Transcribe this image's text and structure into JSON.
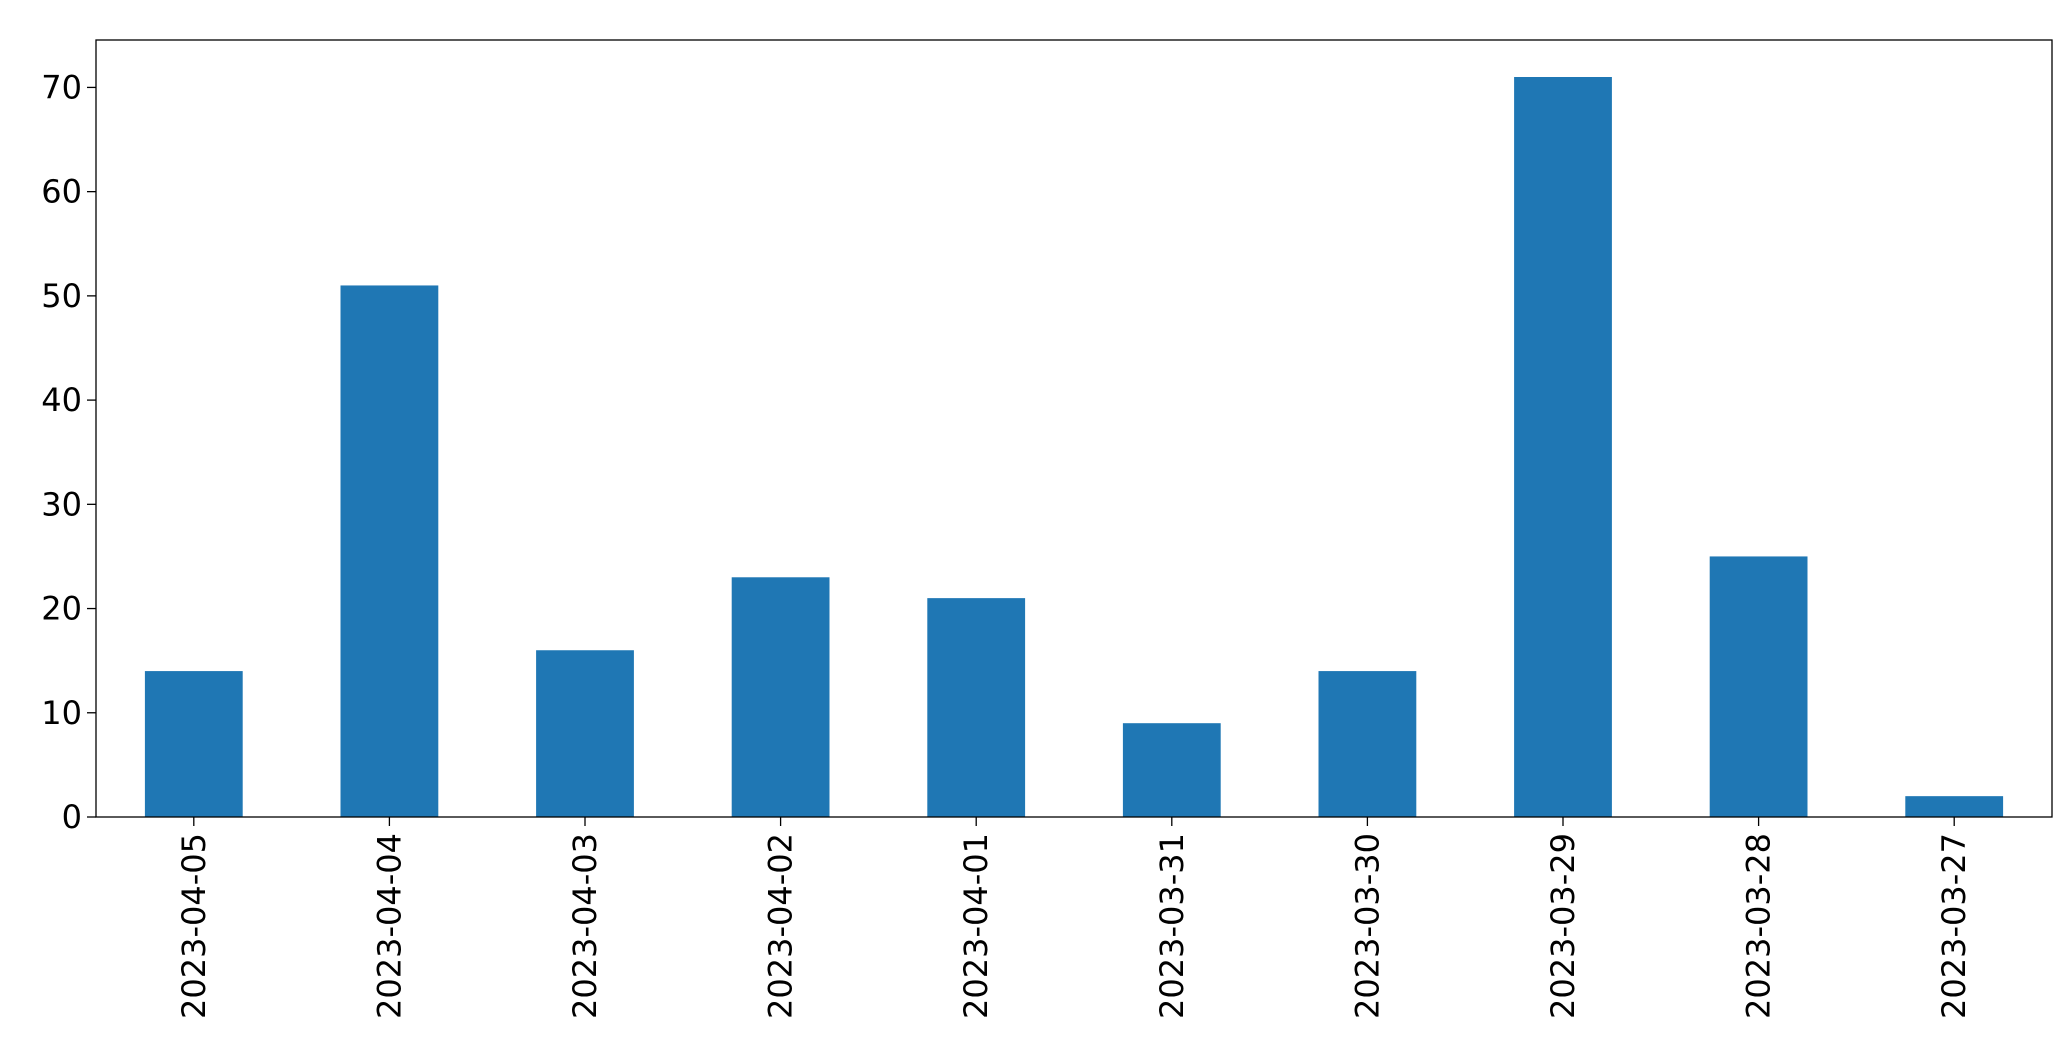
{
  "chart_data": {
    "type": "bar",
    "categories": [
      "2023-04-05",
      "2023-04-04",
      "2023-04-03",
      "2023-04-02",
      "2023-04-01",
      "2023-03-31",
      "2023-03-30",
      "2023-03-29",
      "2023-03-28",
      "2023-03-27"
    ],
    "values": [
      14,
      51,
      16,
      23,
      21,
      9,
      14,
      71,
      25,
      2
    ],
    "color": "#1f77b4",
    "ylim": [
      0,
      74.55
    ],
    "yticks": [
      0,
      10,
      20,
      30,
      40,
      50,
      60,
      70
    ],
    "grid": false
  }
}
